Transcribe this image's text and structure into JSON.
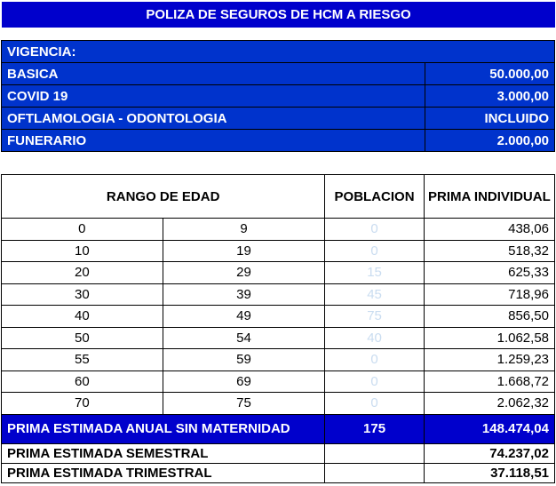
{
  "title": "POLIZA DE SEGUROS DE HCM A RIESGO",
  "vigencia": "VIGENCIA:",
  "coverages": [
    {
      "label": "BASICA",
      "value": "50.000,00"
    },
    {
      "label": "COVID 19",
      "value": "3.000,00"
    },
    {
      "label": "OFTLAMOLOGIA - ODONTOLOGIA",
      "value": "INCLUIDO"
    },
    {
      "label": "FUNERARIO",
      "value": "2.000,00"
    }
  ],
  "headers": {
    "rango": "RANGO DE EDAD",
    "poblacion": "POBLACION",
    "prima": "PRIMA INDIVIDUAL"
  },
  "rows": [
    {
      "from": "0",
      "to": "9",
      "pop": "0",
      "prima": "438,06"
    },
    {
      "from": "10",
      "to": "19",
      "pop": "0",
      "prima": "518,32"
    },
    {
      "from": "20",
      "to": "29",
      "pop": "15",
      "prima": "625,33"
    },
    {
      "from": "30",
      "to": "39",
      "pop": "45",
      "prima": "718,96"
    },
    {
      "from": "40",
      "to": "49",
      "pop": "75",
      "prima": "856,50"
    },
    {
      "from": "50",
      "to": "54",
      "pop": "40",
      "prima": "1.062,58"
    },
    {
      "from": "55",
      "to": "59",
      "pop": "0",
      "prima": "1.259,23"
    },
    {
      "from": "60",
      "to": "69",
      "pop": "0",
      "prima": "1.668,72"
    },
    {
      "from": "70",
      "to": "75",
      "pop": "0",
      "prima": "2.062,32"
    }
  ],
  "total": {
    "label": "PRIMA ESTIMADA ANUAL SIN MATERNIDAD",
    "pop": "175",
    "value": "148.474,04"
  },
  "semestral": {
    "label": "PRIMA ESTIMADA SEMESTRAL",
    "value": "74.237,02"
  },
  "trimestral": {
    "label": "PRIMA ESTIMADA TRIMESTRAL",
    "value": "37.118,51"
  }
}
